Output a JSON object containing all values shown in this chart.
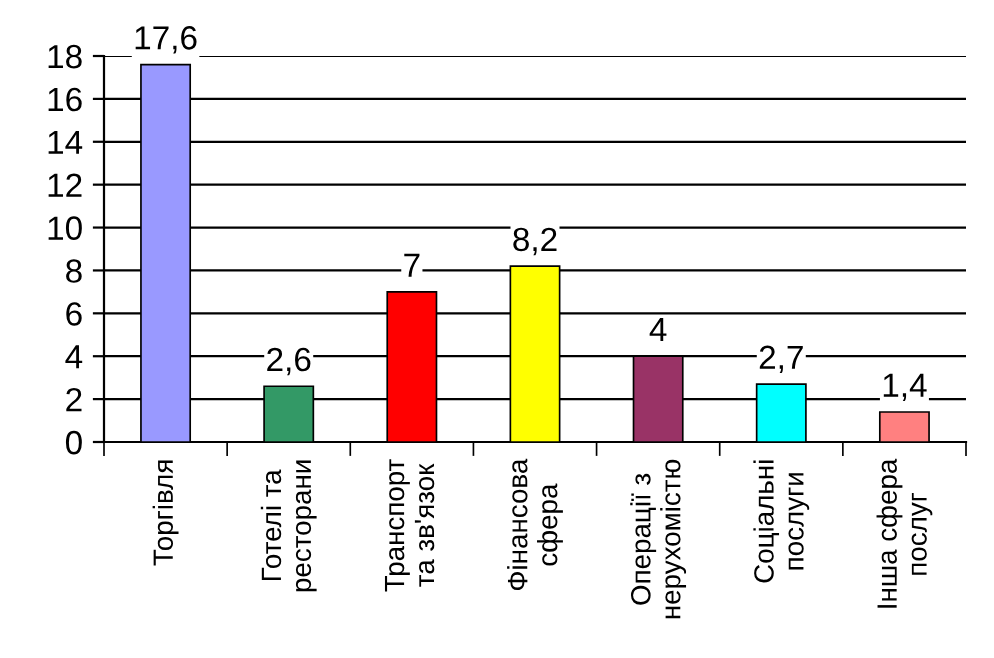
{
  "chart_data": {
    "type": "bar",
    "categories": [
      "Торгівля",
      "Готелі та\nресторани",
      "Транспорт\nта зв'язок",
      "Фінансова\nсфера",
      "Операції з\nнерухомістю",
      "Соціальні\nпослуги",
      "Інша сфера\nпослуг"
    ],
    "values": [
      17.6,
      2.6,
      7,
      8.2,
      4,
      2.7,
      1.4
    ],
    "colors": [
      "#9999ff",
      "#339966",
      "#ff0000",
      "#ffff00",
      "#993366",
      "#00ffff",
      "#ff8080"
    ],
    "value_labels": [
      "17,6",
      "2,6",
      "7",
      "8,2",
      "4",
      "2,7",
      "1,4"
    ],
    "ylim": [
      0,
      18
    ],
    "yticks": [
      0,
      2,
      4,
      6,
      8,
      10,
      12,
      14,
      16,
      18
    ],
    "grid": "y",
    "legend": false
  }
}
